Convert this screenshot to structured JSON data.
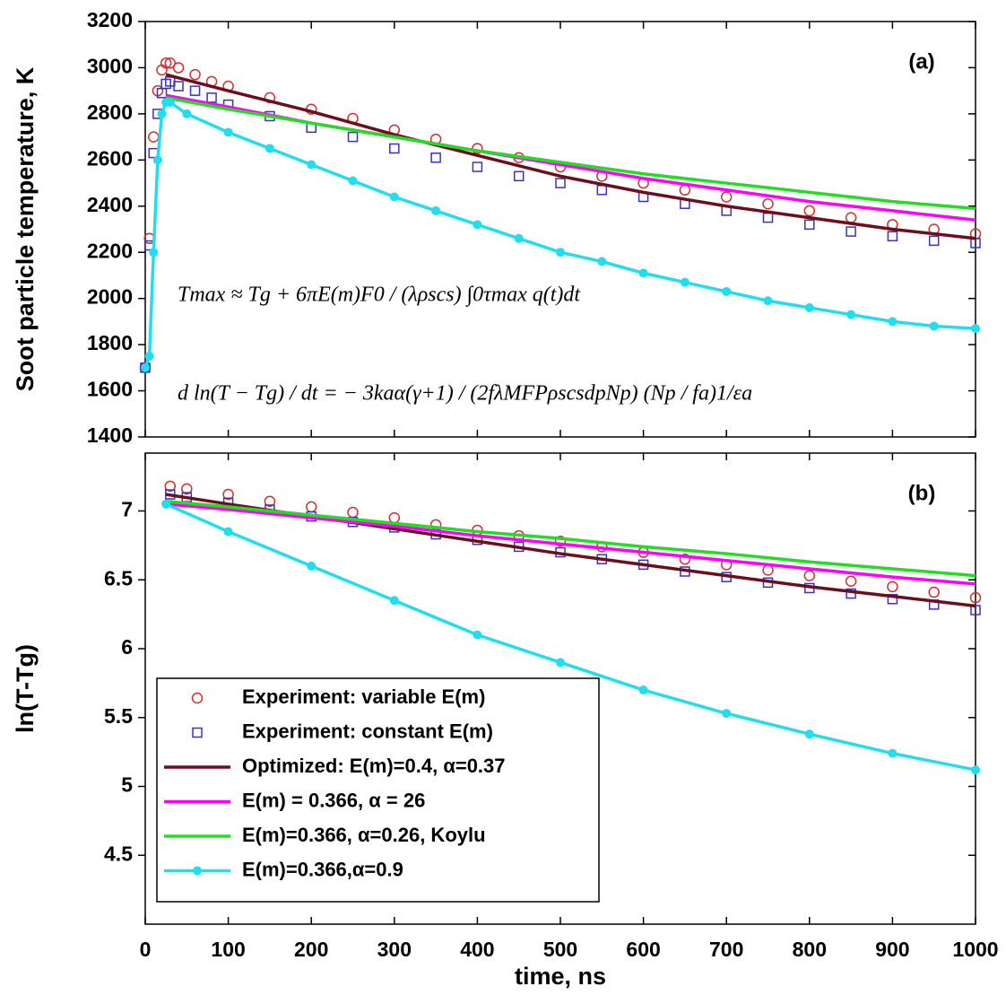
{
  "chart_data": [
    {
      "type": "line",
      "ylabel": "Soot particle temperature, K",
      "panel_label": "(a)",
      "annotations": [
        "Tmax ≈ Tg + 6πE(m)F0 / (λρscs) ∫0τmax q(t)dt",
        "d ln(T − Tg) / dt = − 3kaα(γ+1) / (2fλMFPρscsdpNp) (Np / fa)1/εa"
      ],
      "xlim": [
        0,
        1000
      ],
      "xticks": [
        0,
        100,
        200,
        300,
        400,
        500,
        600,
        700,
        800,
        900,
        1000
      ],
      "ylim": [
        1400,
        3200
      ],
      "yticks": [
        1400,
        1600,
        1800,
        2000,
        2200,
        2400,
        2600,
        2800,
        3000,
        3200
      ],
      "series": [
        {
          "color": "#d03030",
          "marker": "circle",
          "line": false,
          "x": [
            0,
            5,
            10,
            15,
            20,
            25,
            30,
            40,
            60,
            80,
            100,
            150,
            200,
            250,
            300,
            350,
            400,
            450,
            500,
            550,
            600,
            650,
            700,
            750,
            800,
            850,
            900,
            950,
            1000
          ],
          "values": [
            1700,
            2260,
            2700,
            2900,
            2990,
            3020,
            3020,
            3000,
            2970,
            2940,
            2920,
            2870,
            2820,
            2780,
            2730,
            2690,
            2650,
            2610,
            2570,
            2530,
            2500,
            2470,
            2440,
            2410,
            2380,
            2350,
            2320,
            2300,
            2280
          ]
        },
        {
          "color": "#3535b5",
          "marker": "square",
          "line": false,
          "x": [
            0,
            5,
            10,
            15,
            20,
            25,
            30,
            40,
            60,
            80,
            100,
            150,
            200,
            250,
            300,
            350,
            400,
            450,
            500,
            550,
            600,
            650,
            700,
            750,
            800,
            850,
            900,
            950,
            1000
          ],
          "values": [
            1700,
            2230,
            2630,
            2800,
            2890,
            2930,
            2940,
            2920,
            2900,
            2870,
            2840,
            2790,
            2740,
            2700,
            2650,
            2610,
            2570,
            2530,
            2500,
            2470,
            2440,
            2410,
            2380,
            2350,
            2320,
            2290,
            2270,
            2250,
            2240
          ]
        },
        {
          "color": "#6b0e1e",
          "line": true,
          "x": [
            25,
            100,
            200,
            300,
            400,
            500,
            600,
            700,
            800,
            900,
            1000
          ],
          "values": [
            2970,
            2900,
            2810,
            2710,
            2620,
            2530,
            2460,
            2400,
            2350,
            2300,
            2260
          ]
        },
        {
          "color": "#ff00ff",
          "line": true,
          "x": [
            25,
            100,
            200,
            300,
            400,
            500,
            600,
            700,
            800,
            900,
            1000
          ],
          "values": [
            2880,
            2830,
            2760,
            2700,
            2640,
            2580,
            2520,
            2470,
            2420,
            2380,
            2340
          ]
        },
        {
          "color": "#22dd22",
          "line": true,
          "x": [
            25,
            100,
            200,
            300,
            400,
            500,
            600,
            700,
            800,
            900,
            1000
          ],
          "values": [
            2870,
            2820,
            2760,
            2700,
            2640,
            2590,
            2540,
            2500,
            2460,
            2420,
            2390
          ]
        },
        {
          "color": "#22ddee",
          "marker": "dot",
          "line": true,
          "x": [
            0,
            5,
            10,
            15,
            20,
            25,
            30,
            50,
            100,
            150,
            200,
            250,
            300,
            350,
            400,
            450,
            500,
            550,
            600,
            650,
            700,
            750,
            800,
            850,
            900,
            950,
            1000
          ],
          "values": [
            1700,
            1750,
            2200,
            2600,
            2800,
            2850,
            2850,
            2800,
            2720,
            2650,
            2580,
            2510,
            2440,
            2380,
            2320,
            2260,
            2200,
            2160,
            2110,
            2070,
            2030,
            1990,
            1960,
            1930,
            1900,
            1880,
            1870
          ]
        }
      ]
    },
    {
      "type": "line",
      "ylabel": "ln(T-Tg)",
      "xlabel": "time, ns",
      "panel_label": "(b)",
      "legend": "lower left",
      "xlim": [
        0,
        1000
      ],
      "xticks": [
        0,
        100,
        200,
        300,
        400,
        500,
        600,
        700,
        800,
        900,
        1000
      ],
      "ylim": [
        4.0,
        7.42
      ],
      "yticks": [
        4.5,
        5.0,
        5.5,
        6.0,
        6.5,
        7.0
      ],
      "series": [
        {
          "name": "Experiment: variable E(m)",
          "color": "#d03030",
          "marker": "circle",
          "line": false,
          "x": [
            30,
            50,
            100,
            150,
            200,
            250,
            300,
            350,
            400,
            450,
            500,
            550,
            600,
            650,
            700,
            750,
            800,
            850,
            900,
            950,
            1000
          ],
          "values": [
            7.18,
            7.16,
            7.12,
            7.07,
            7.03,
            6.99,
            6.95,
            6.9,
            6.86,
            6.82,
            6.78,
            6.74,
            6.7,
            6.65,
            6.61,
            6.57,
            6.53,
            6.49,
            6.45,
            6.41,
            6.37
          ]
        },
        {
          "name": "Experiment: constant E(m)",
          "color": "#3535b5",
          "marker": "square",
          "line": false,
          "x": [
            30,
            50,
            100,
            150,
            200,
            250,
            300,
            350,
            400,
            450,
            500,
            550,
            600,
            650,
            700,
            750,
            800,
            850,
            900,
            950,
            1000
          ],
          "values": [
            7.12,
            7.1,
            7.06,
            7.01,
            6.96,
            6.92,
            6.88,
            6.83,
            6.79,
            6.74,
            6.7,
            6.65,
            6.61,
            6.56,
            6.52,
            6.48,
            6.44,
            6.4,
            6.36,
            6.32,
            6.28
          ]
        },
        {
          "name": "Optimized: E(m)=0.4, α=0.37",
          "color": "#6b0e1e",
          "line": true,
          "x": [
            25,
            100,
            200,
            300,
            400,
            500,
            600,
            700,
            800,
            900,
            1000
          ],
          "values": [
            7.12,
            7.05,
            6.96,
            6.87,
            6.78,
            6.69,
            6.61,
            6.53,
            6.45,
            6.38,
            6.31
          ]
        },
        {
          "name": "E(m) = 0.366, α = 26",
          "color": "#ff00ff",
          "line": true,
          "x": [
            25,
            100,
            200,
            300,
            400,
            500,
            600,
            700,
            800,
            900,
            1000
          ],
          "values": [
            7.05,
            7.01,
            6.95,
            6.89,
            6.82,
            6.76,
            6.7,
            6.64,
            6.58,
            6.52,
            6.47
          ]
        },
        {
          "name": "E(m)=0.366, α=0.26, Koylu",
          "color": "#22dd22",
          "line": true,
          "x": [
            25,
            100,
            200,
            300,
            400,
            500,
            600,
            700,
            800,
            900,
            1000
          ],
          "values": [
            7.07,
            7.03,
            6.97,
            6.91,
            6.85,
            6.8,
            6.74,
            6.69,
            6.63,
            6.58,
            6.53
          ]
        },
        {
          "name": "E(m)=0.366,α=0.9",
          "color": "#22ddee",
          "marker": "dot",
          "line": true,
          "x": [
            25,
            100,
            200,
            300,
            400,
            500,
            600,
            700,
            800,
            900,
            1000
          ],
          "values": [
            7.05,
            6.85,
            6.6,
            6.35,
            6.1,
            5.9,
            5.7,
            5.53,
            5.38,
            5.24,
            5.12
          ]
        }
      ]
    }
  ]
}
